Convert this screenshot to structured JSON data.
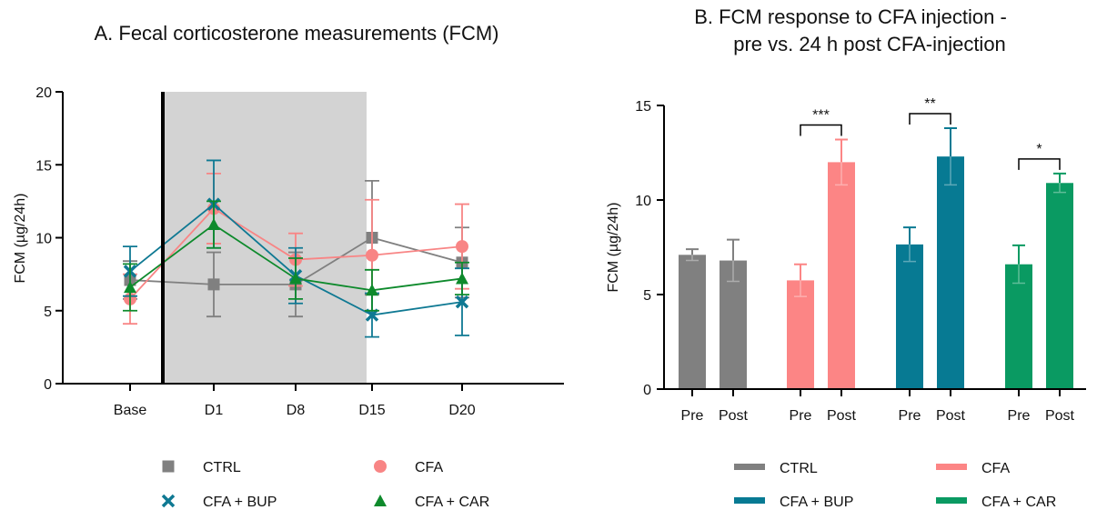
{
  "chart_data": [
    {
      "type": "line",
      "title": "A. Fecal corticosterone measurements (FCM)",
      "xlabel": "",
      "ylabel": "FCM (µg/24h)",
      "categories": [
        "Base",
        "D1",
        "D8",
        "D15",
        "D20"
      ],
      "ylim": [
        0,
        20
      ],
      "yticks": [
        "0",
        "5",
        "10",
        "15",
        "20"
      ],
      "shaded_region": [
        "D1",
        "D15"
      ],
      "series": [
        {
          "name": "CTRL",
          "marker": "square",
          "color": "#808080",
          "values": [
            7.1,
            6.8,
            6.8,
            10.0,
            8.3
          ],
          "errors": [
            1.3,
            2.2,
            2.2,
            3.9,
            2.4
          ]
        },
        {
          "name": "CFA",
          "marker": "circle",
          "color": "#F88585",
          "values": [
            5.8,
            12.0,
            8.5,
            8.8,
            9.4
          ],
          "errors": [
            1.7,
            2.4,
            1.8,
            3.8,
            2.9
          ]
        },
        {
          "name": "CFA + BUP",
          "marker": "x",
          "color": "#0F7993",
          "values": [
            7.7,
            12.3,
            7.4,
            4.7,
            5.6
          ],
          "errors": [
            1.7,
            3.0,
            1.9,
            1.5,
            2.3
          ]
        },
        {
          "name": "CFA + CAR",
          "marker": "triangle",
          "color": "#0E8A2C",
          "values": [
            6.6,
            10.9,
            7.2,
            6.4,
            7.2
          ],
          "errors": [
            1.6,
            1.6,
            1.4,
            1.4,
            1.1
          ]
        }
      ]
    },
    {
      "type": "bar",
      "title_line1": "B. FCM response to CFA injection -",
      "title_line2": "pre vs. 24 h post CFA-injection",
      "xlabel": "",
      "ylabel": "FCM (µg/24h)",
      "ylim": [
        0,
        15
      ],
      "yticks": [
        "0",
        "5",
        "10",
        "15"
      ],
      "groups": [
        {
          "name": "CTRL",
          "color": "#808080",
          "bars": [
            {
              "label": "Pre",
              "value": 7.1,
              "error": 0.3
            },
            {
              "label": "Post",
              "value": 6.8,
              "error": 1.1
            }
          ],
          "significance": ""
        },
        {
          "name": "CFA",
          "color": "#FC8585",
          "bars": [
            {
              "label": "Pre",
              "value": 5.75,
              "error": 0.85
            },
            {
              "label": "Post",
              "value": 12.0,
              "error": 1.2
            }
          ],
          "significance": "***"
        },
        {
          "name": "CFA + BUP",
          "color": "#077A93",
          "bars": [
            {
              "label": "Pre",
              "value": 7.65,
              "error": 0.9
            },
            {
              "label": "Post",
              "value": 12.3,
              "error": 1.5
            }
          ],
          "significance": "**"
        },
        {
          "name": "CFA + CAR",
          "color": "#0A9A62",
          "bars": [
            {
              "label": "Pre",
              "value": 6.6,
              "error": 1.0
            },
            {
              "label": "Post",
              "value": 10.9,
              "error": 0.5
            }
          ],
          "significance": "*"
        }
      ]
    }
  ]
}
